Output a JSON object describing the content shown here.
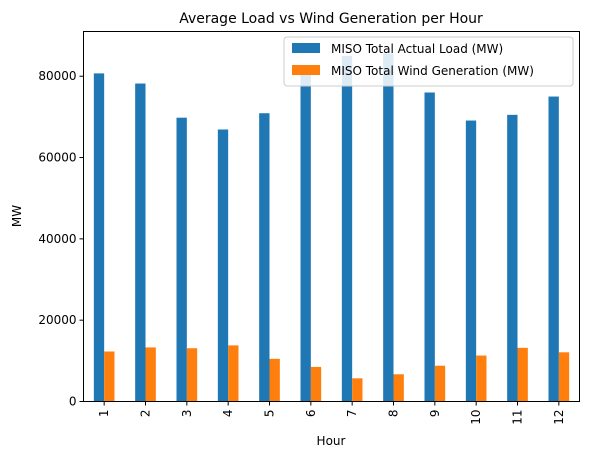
{
  "chart_data": {
    "type": "bar",
    "title": "Average Load vs Wind Generation per Hour",
    "xlabel": "Hour",
    "ylabel": "MW",
    "categories": [
      "1",
      "2",
      "3",
      "4",
      "5",
      "6",
      "7",
      "8",
      "9",
      "10",
      "11",
      "12"
    ],
    "series": [
      {
        "name": "MISO Total Actual Load (MW)",
        "color": "#1f77b4",
        "values": [
          80700,
          78200,
          69800,
          66900,
          70900,
          82600,
          85000,
          85600,
          76000,
          69100,
          70500,
          75000
        ]
      },
      {
        "name": "MISO Total Wind Generation (MW)",
        "color": "#ff7f0e",
        "values": [
          12300,
          13300,
          13100,
          13800,
          10500,
          8500,
          5700,
          6700,
          8800,
          11300,
          13200,
          12100
        ]
      }
    ],
    "yticks": [
      0,
      20000,
      40000,
      60000,
      80000
    ],
    "ylim": [
      0,
      91000
    ],
    "grid": false,
    "legend_position": "top-right"
  }
}
